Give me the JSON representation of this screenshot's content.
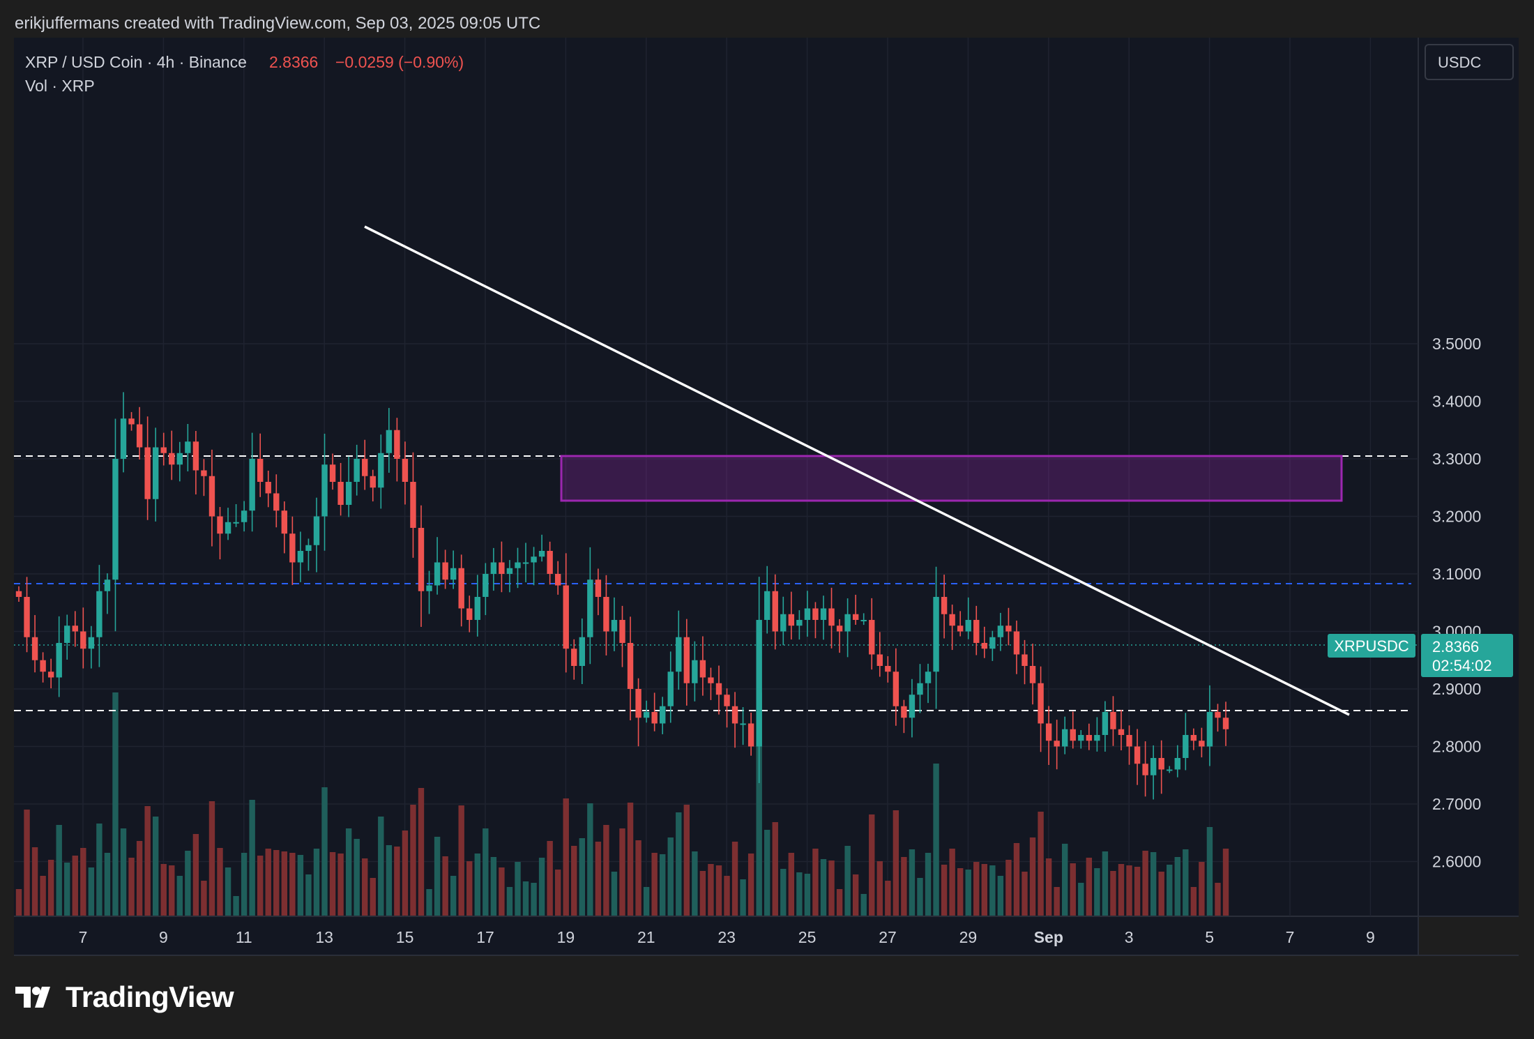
{
  "attribution": "erikjuffermans created with TradingView.com, Sep 03, 2025 09:05 UTC",
  "logo_text": "TradingView",
  "legend": {
    "symbol": "XRP / USD Coin · 4h · Binance",
    "price": "2.8366",
    "change": "−0.0259 (−0.90%)",
    "vol": "Vol · XRP"
  },
  "currency_button": "USDC",
  "price_tag": {
    "symbol": "XRPUSDC",
    "price": "2.8366",
    "countdown": "02:54:02"
  },
  "colors": {
    "up": "#26a69a",
    "down": "#ef5350",
    "vol_up": "#1f5f5b",
    "vol_down": "#7d2f31",
    "zone": "#9c27b0",
    "blue_line": "#2962ff",
    "background": "#131722"
  },
  "chart_data": {
    "type": "candlestick",
    "interval": "4h",
    "title": "XRP / USD Coin · 4h · Binance",
    "x_ticks": [
      "7",
      "9",
      "11",
      "13",
      "15",
      "17",
      "19",
      "21",
      "23",
      "25",
      "27",
      "29",
      "Sep",
      "3",
      "5",
      "7",
      "9"
    ],
    "y_ticks": [
      "3.5000",
      "3.4000",
      "3.3000",
      "3.2000",
      "3.1000",
      "3.0000",
      "2.9000",
      "2.8000",
      "2.7000",
      "2.6000"
    ],
    "ylim": [
      2.51,
      3.57
    ],
    "xlim": [
      "Aug 5 12:00",
      "Sep 9 00:00"
    ],
    "start": "Aug 5 12:00",
    "closes": [
      3.06,
      2.99,
      2.95,
      2.93,
      2.92,
      2.98,
      3.01,
      3.0,
      2.97,
      2.99,
      3.07,
      3.09,
      3.3,
      3.37,
      3.36,
      3.32,
      3.23,
      3.32,
      3.31,
      3.29,
      3.31,
      3.33,
      3.28,
      3.27,
      3.2,
      3.17,
      3.19,
      3.19,
      3.21,
      3.3,
      3.26,
      3.24,
      3.21,
      3.17,
      3.12,
      3.14,
      3.15,
      3.2,
      3.29,
      3.26,
      3.22,
      3.26,
      3.3,
      3.27,
      3.25,
      3.31,
      3.35,
      3.3,
      3.26,
      3.18,
      3.07,
      3.08,
      3.12,
      3.09,
      3.11,
      3.04,
      3.02,
      3.06,
      3.1,
      3.12,
      3.1,
      3.11,
      3.12,
      3.12,
      3.13,
      3.14,
      3.1,
      3.08,
      2.97,
      2.94,
      2.99,
      3.09,
      3.06,
      3.0,
      3.02,
      2.98,
      2.9,
      2.85,
      2.86,
      2.84,
      2.87,
      2.93,
      2.99,
      2.91,
      2.95,
      2.92,
      2.91,
      2.89,
      2.87,
      2.84,
      2.84,
      2.8,
      3.02,
      3.07,
      3.0,
      3.03,
      3.01,
      3.02,
      3.04,
      3.02,
      3.04,
      3.01,
      3.0,
      3.03,
      3.02,
      3.02,
      2.96,
      2.94,
      2.93,
      2.87,
      2.85,
      2.89,
      2.91,
      2.93,
      3.06,
      3.03,
      3.01,
      3.0,
      3.02,
      2.98,
      2.97,
      2.99,
      3.01,
      3.0,
      2.96,
      2.94,
      2.91,
      2.84,
      2.81,
      2.8,
      2.83,
      2.81,
      2.82,
      2.81,
      2.82,
      2.86,
      2.83,
      2.82,
      2.8,
      2.77,
      2.75,
      2.78,
      2.76,
      2.76,
      2.78,
      2.82,
      2.81,
      2.8,
      2.86,
      2.85,
      2.83
    ]
  }
}
